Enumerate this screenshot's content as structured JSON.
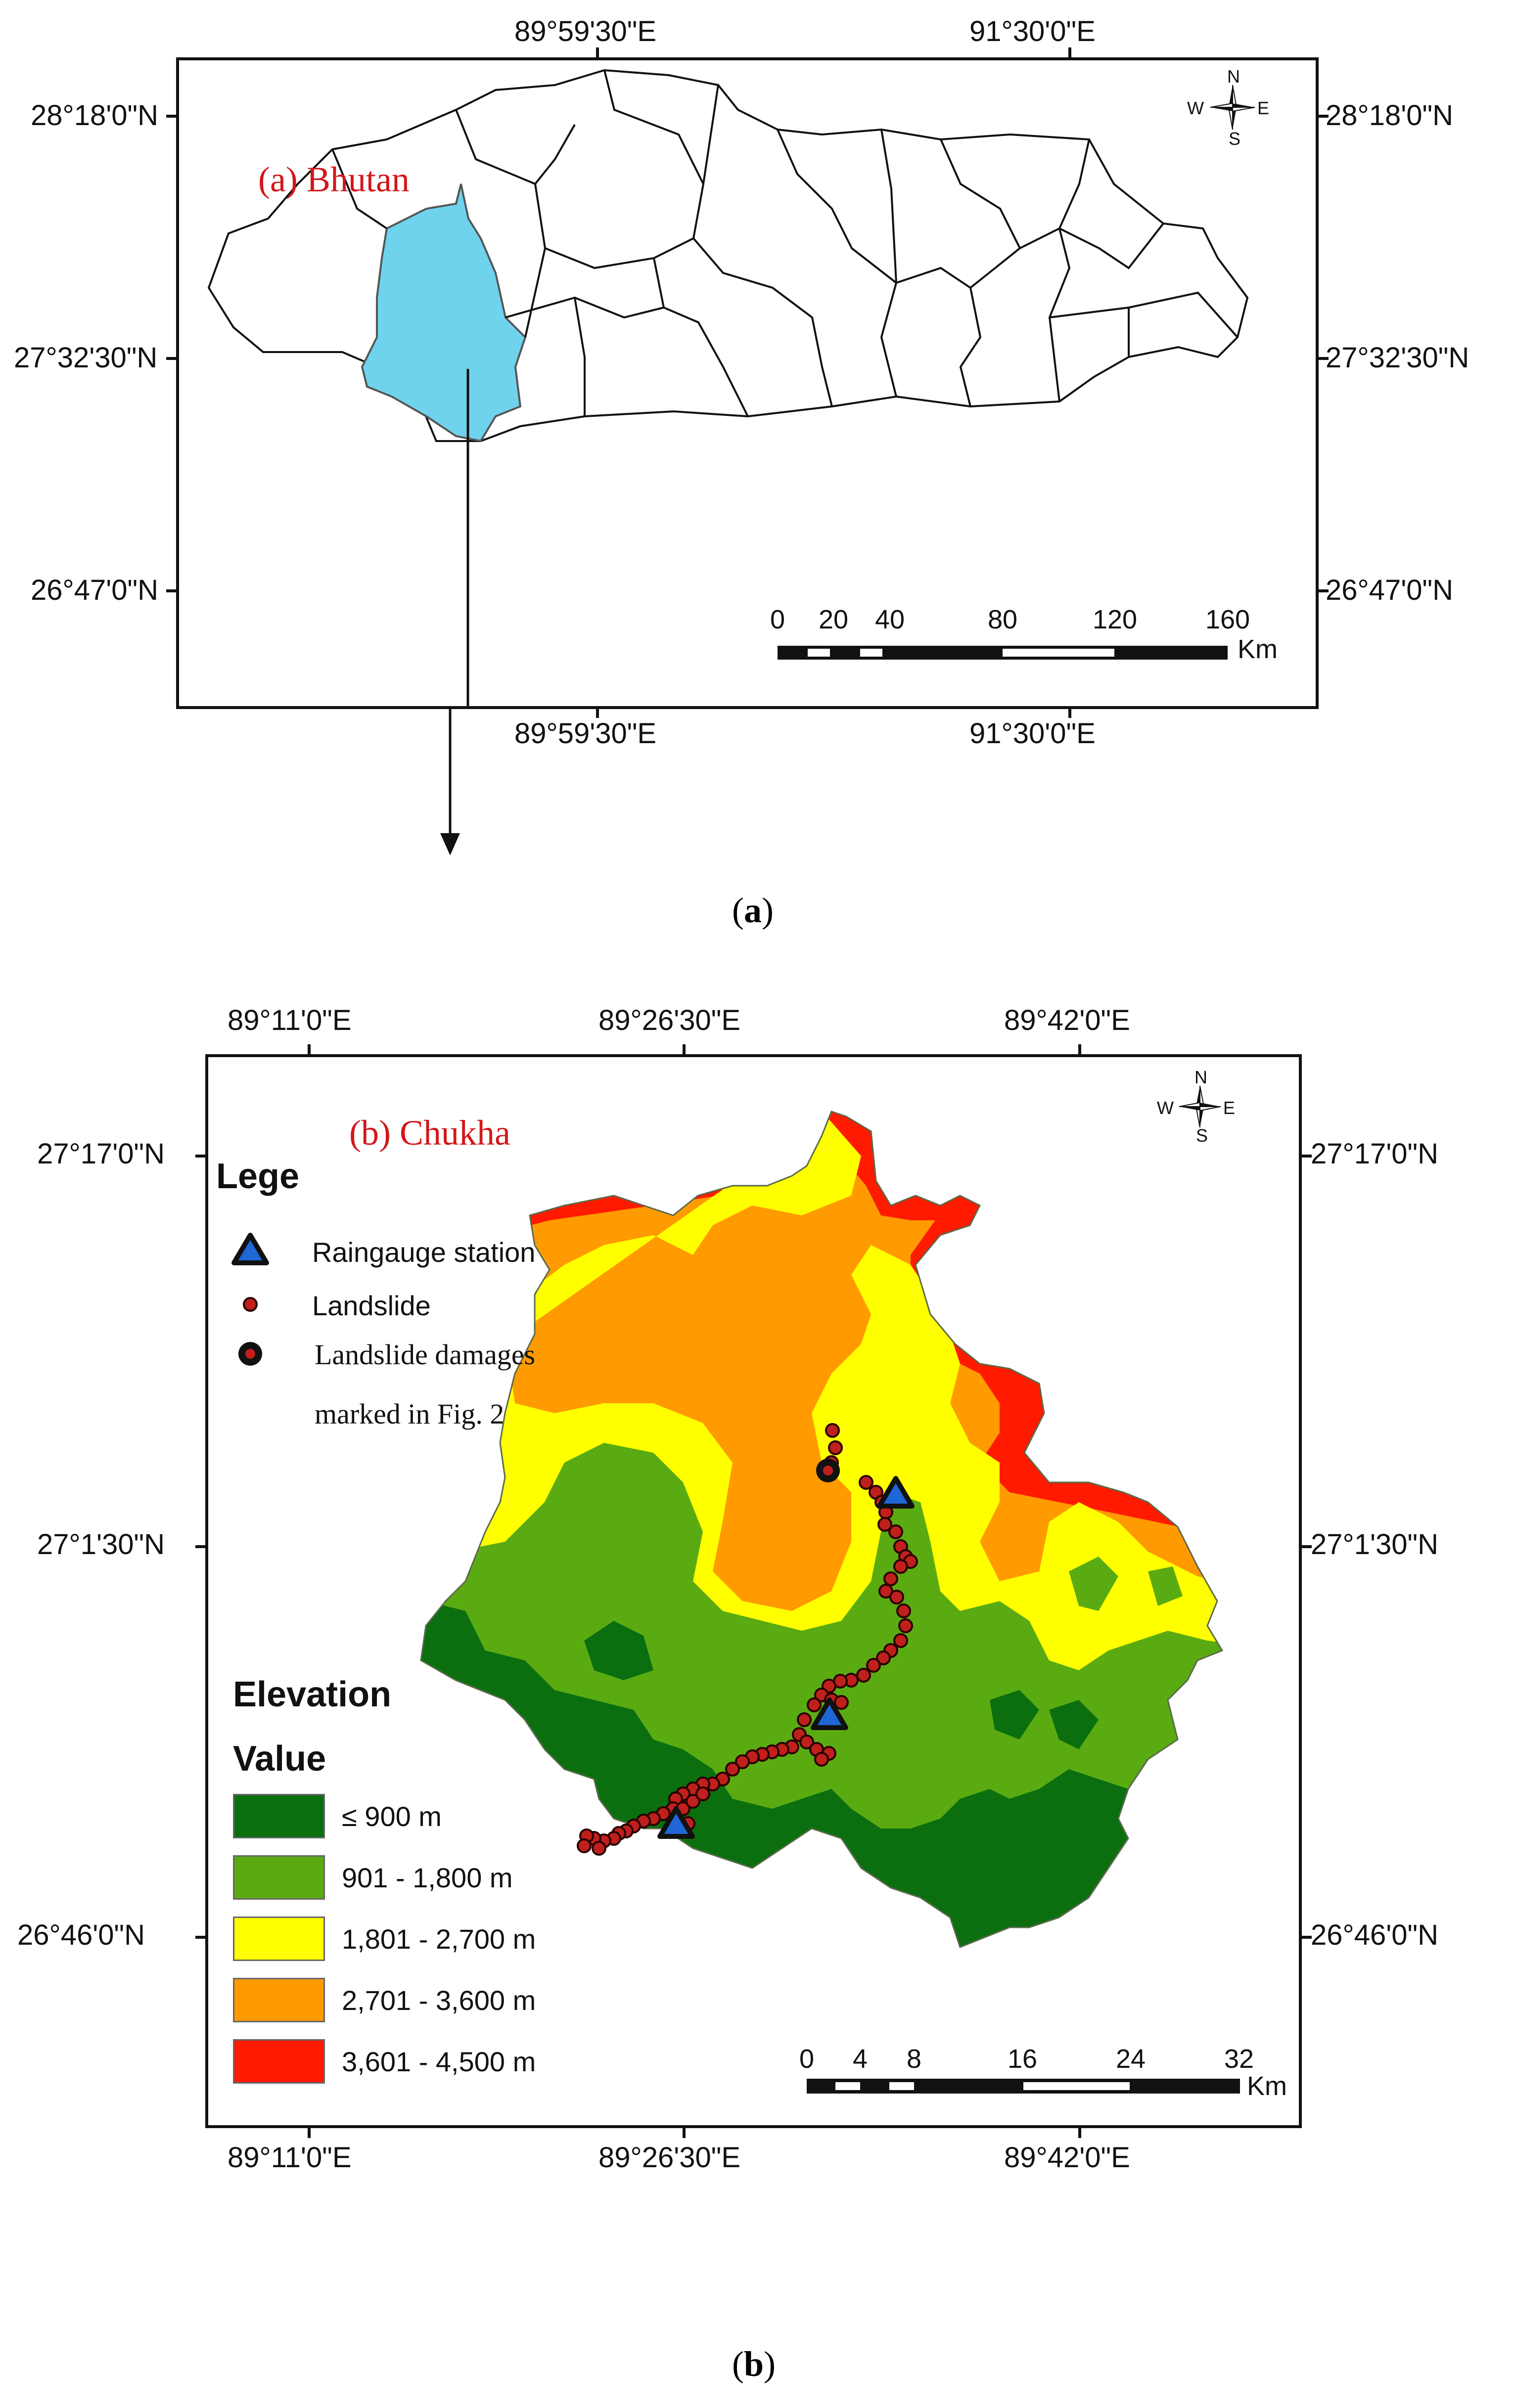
{
  "panel_a": {
    "title": "(a) Bhutan",
    "caption": "a",
    "top_lon_labels": [
      "89°59'30\"E",
      "91°30'0\"E"
    ],
    "bottom_lon_labels": [
      "89°59'30\"E",
      "91°30'0\"E"
    ],
    "left_lat_labels": [
      "28°18'0\"N",
      "27°32'30\"N",
      "26°47'0\"N"
    ],
    "right_lat_labels": [
      "28°18'0\"N",
      "27°32'30\"N",
      "26°47'0\"N"
    ],
    "scale_labels": [
      "0",
      "20",
      "40",
      "80",
      "120",
      "160"
    ],
    "scale_unit": "Km",
    "highlight_color": "#6fd3ee",
    "compass": {
      "n": "N",
      "s": "S",
      "e": "E",
      "w": "W"
    }
  },
  "panel_b": {
    "title": "(b) Chukha",
    "caption": "b",
    "top_lon_labels": [
      "89°11'0\"E",
      "89°26'30\"E",
      "89°42'0\"E"
    ],
    "bottom_lon_labels": [
      "89°11'0\"E",
      "89°26'30\"E",
      "89°42'0\"E"
    ],
    "left_lat_labels": [
      "27°17'0\"N",
      "27°1'30\"N",
      "26°46'0\"N"
    ],
    "right_lat_labels": [
      "27°17'0\"N",
      "27°1'30\"N",
      "26°46'0\"N"
    ],
    "legend": {
      "heading": "Lege",
      "raingauge": "Raingauge station",
      "landslide": "Landslide",
      "damages_line1": "Landslide damages",
      "damages_line2": "marked in Fig. 2"
    },
    "elevation": {
      "heading": "Elevation",
      "subheading": "Value",
      "classes": [
        {
          "label": "≤ 900 m",
          "color": "#0b6f0f"
        },
        {
          "label": "901 - 1,800 m",
          "color": "#5aab12"
        },
        {
          "label": "1,801 - 2,700 m",
          "color": "#ffff00"
        },
        {
          "label": "2,701 - 3,600 m",
          "color": "#ff9a00"
        },
        {
          "label": "3,601 - 4,500 m",
          "color": "#ff1a00"
        }
      ]
    },
    "scale_labels": [
      "0",
      "4",
      "8",
      "16",
      "24",
      "32"
    ],
    "scale_unit": "Km",
    "compass": {
      "n": "N",
      "s": "S",
      "e": "E",
      "w": "W"
    }
  }
}
